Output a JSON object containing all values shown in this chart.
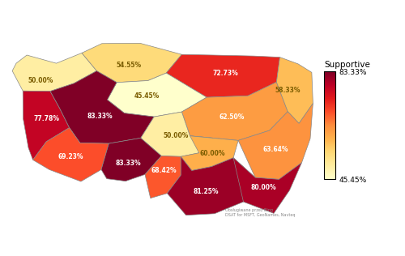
{
  "provinces": {
    "Zachodniopomorskie": 50.0,
    "Pomorskie": 54.55,
    "Warmia-Mazury": 72.73,
    "Lubuskie": 77.78,
    "Kujawsko-Pomorskie": 45.45,
    "Wielkopolskie": 83.33,
    "Mazowieckie": 62.5,
    "Podlaskie": 58.33,
    "Dolnoslaskie": 69.23,
    "Lodzkie": 50.0,
    "Lubelskie": 63.64,
    "Opolskie": 83.33,
    "Slaskie": 68.42,
    "Swietokrzyskie": 60.0,
    "Malopolskie": 81.25,
    "Podkarpackie": 80.0
  },
  "province_labels": {
    "Zachodniopomorskie": "50.00%",
    "Pomorskie": "54.55%",
    "Warmia-Mazury": "72.73%",
    "Lubuskie": "77.78%",
    "Kujawsko-Pomorskie": "45.45%",
    "Wielkopolskie": "83.33%",
    "Mazowieckie": "62.50%",
    "Podlaskie": "58.33%",
    "Dolnoslaskie": "69.23%",
    "Lodzkie": "50.00%",
    "Lubelskie": "63.64%",
    "Opolskie": "83.33%",
    "Slaskie": "68.42%",
    "Swietokrzyskie": "60.00%",
    "Malopolskie": "81.25%",
    "Podkarpackie": "80.00%"
  },
  "vmin": 45.45,
  "vmax": 83.33,
  "colorbar_label": "Supportive",
  "colorbar_ticklabels": [
    "83.33%",
    "45.45%"
  ],
  "background_color": "#ffffff",
  "cmap": "YlOrRd",
  "attribution": "Obsługiwane przez Bing\nDSAT for MSFT, GeoNames, Navteq"
}
